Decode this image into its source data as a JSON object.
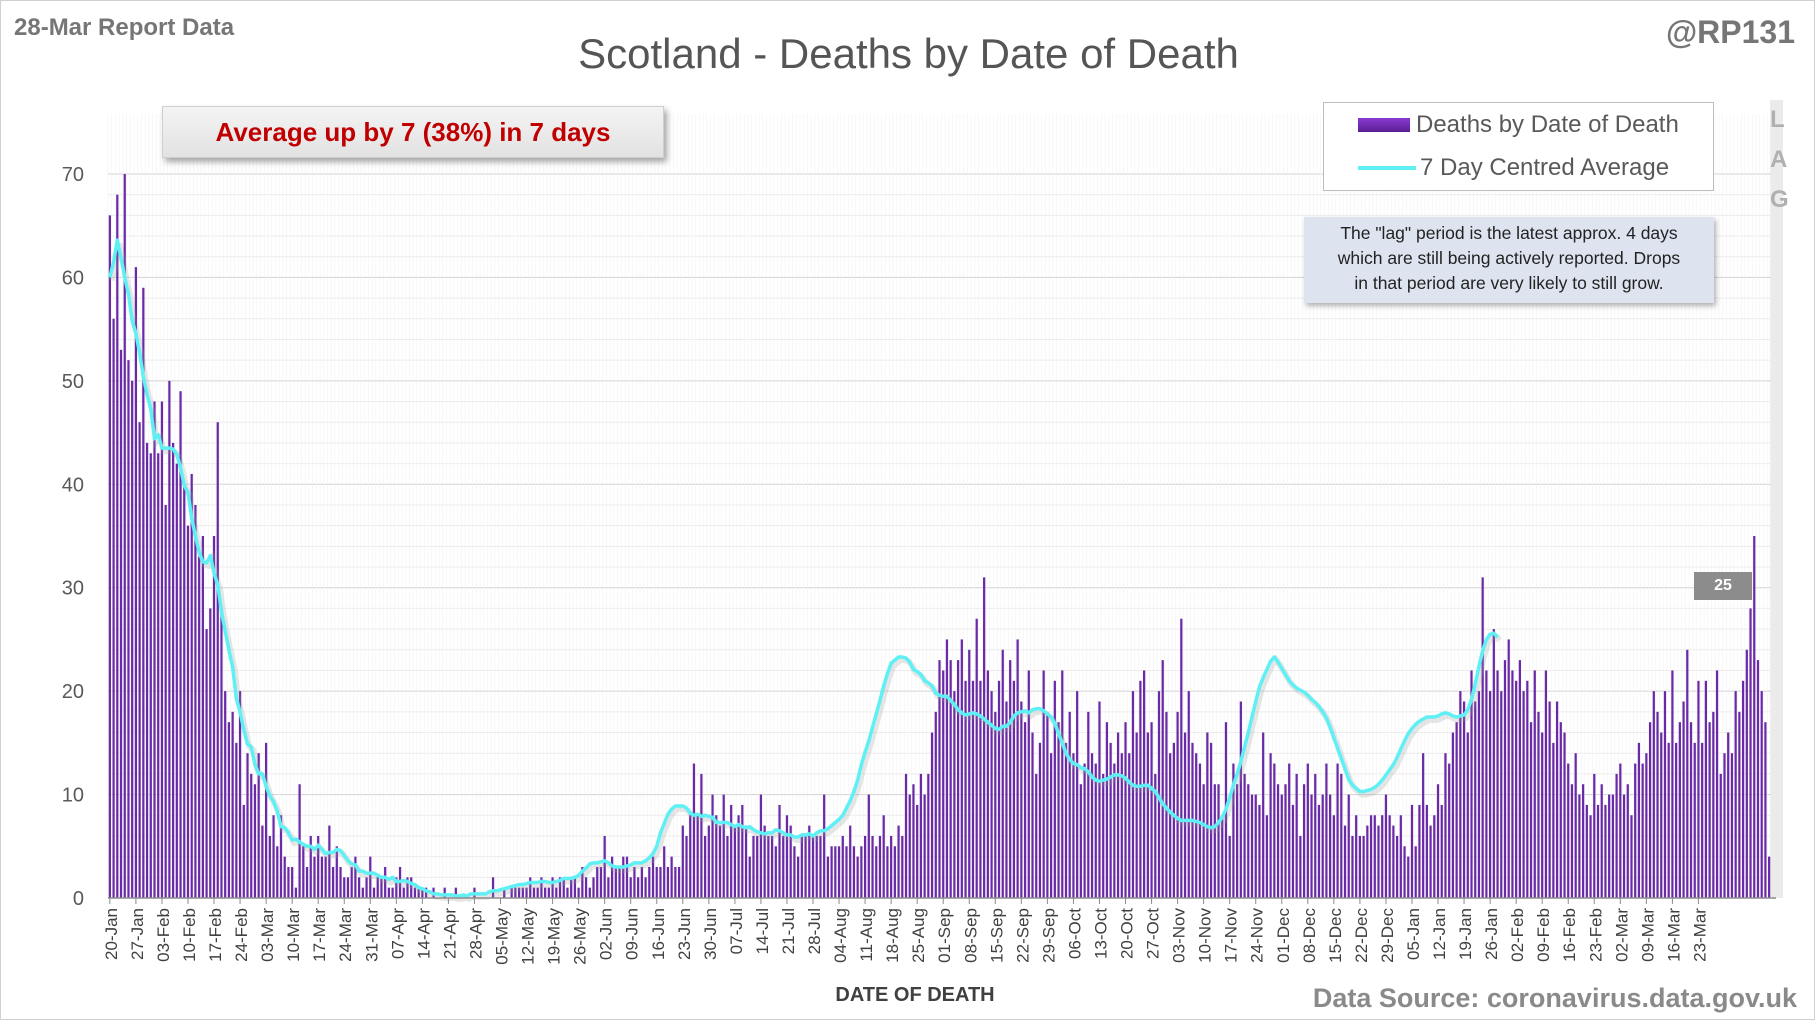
{
  "header": {
    "report_label": "28-Mar Report Data",
    "handle": "@RP131"
  },
  "banner": {
    "text": "Average up by 7 (38%) in 7 days"
  },
  "legend": {
    "bar_label": "Deaths by Date of Death",
    "line_label": "7 Day Centred Average"
  },
  "lag_letters": [
    "L",
    "A",
    "G"
  ],
  "note": {
    "lines": [
      "The \"lag\" period is the latest approx. 4 days",
      "which are still being actively reported. Drops",
      "in that period are very likely to still grow."
    ]
  },
  "callout": {
    "value": "25"
  },
  "footer": {
    "source": "Data Source: coronavirus.data.gov.uk"
  },
  "colors": {
    "bar": "#6a2aa8",
    "line": "#5ef0f5",
    "lag_band": "#ebebeb",
    "banner_text": "#c00000"
  },
  "chart_data": {
    "type": "bar",
    "title": "Scotland - Deaths by Date of Death",
    "xlabel": "DATE OF DEATH",
    "ylabel": "",
    "ylim": [
      0,
      70
    ],
    "yticks": [
      0,
      10,
      20,
      30,
      40,
      50,
      60,
      70
    ],
    "grid": true,
    "legend_position": "top-right",
    "x_tick_labels": [
      "20-Jan",
      "27-Jan",
      "03-Feb",
      "10-Feb",
      "17-Feb",
      "24-Feb",
      "03-Mar",
      "10-Mar",
      "17-Mar",
      "24-Mar",
      "31-Mar",
      "07-Apr",
      "14-Apr",
      "21-Apr",
      "28-Apr",
      "05-May",
      "12-May",
      "19-May",
      "26-May",
      "02-Jun",
      "09-Jun",
      "16-Jun",
      "23-Jun",
      "30-Jun",
      "07-Jul",
      "14-Jul",
      "21-Jul",
      "28-Jul",
      "04-Aug",
      "11-Aug",
      "18-Aug",
      "25-Aug",
      "01-Sep",
      "08-Sep",
      "15-Sep",
      "22-Sep",
      "29-Sep",
      "06-Oct",
      "13-Oct",
      "20-Oct",
      "27-Oct",
      "03-Nov",
      "10-Nov",
      "17-Nov",
      "24-Nov",
      "01-Dec",
      "08-Dec",
      "15-Dec",
      "22-Dec",
      "29-Dec",
      "05-Jan",
      "12-Jan",
      "19-Jan",
      "26-Jan",
      "02-Feb",
      "09-Feb",
      "16-Feb",
      "23-Feb",
      "02-Mar",
      "09-Mar",
      "16-Mar",
      "23-Mar"
    ],
    "series": [
      {
        "name": "Deaths by Date of Death",
        "type": "bar",
        "values": [
          66,
          56,
          68,
          53,
          70,
          52,
          50,
          61,
          46,
          59,
          44,
          43,
          48,
          43,
          48,
          38,
          50,
          44,
          42,
          49,
          40,
          36,
          41,
          38,
          33,
          35,
          26,
          28,
          35,
          46,
          28,
          20,
          17,
          18,
          15,
          20,
          9,
          14,
          12,
          11,
          14,
          7,
          15,
          6,
          8,
          5,
          8,
          4,
          3,
          3,
          1,
          11,
          5,
          3,
          6,
          4,
          6,
          4,
          4,
          7,
          3,
          5,
          3,
          2,
          2,
          3,
          4,
          2,
          1,
          2,
          4,
          1,
          2,
          2,
          3,
          1,
          1,
          2,
          3,
          1,
          2,
          2,
          1,
          1,
          1,
          1,
          0,
          1,
          0,
          0,
          1,
          0,
          0,
          1,
          0,
          0,
          0,
          0,
          1,
          0,
          0,
          0,
          0,
          2,
          0,
          0,
          1,
          0,
          1,
          1,
          1,
          1,
          1,
          2,
          1,
          1,
          2,
          1,
          1,
          2,
          1,
          2,
          2,
          1,
          2,
          2,
          1,
          3,
          2,
          1,
          2,
          3,
          3,
          6,
          2,
          4,
          3,
          3,
          4,
          4,
          2,
          3,
          2,
          3,
          2,
          3,
          4,
          3,
          3,
          5,
          3,
          4,
          3,
          3,
          7,
          6,
          8,
          13,
          8,
          12,
          6,
          7,
          10,
          8,
          7,
          10,
          6,
          9,
          7,
          8,
          9,
          7,
          4,
          6,
          6,
          10,
          7,
          6,
          6,
          5,
          9,
          6,
          8,
          7,
          5,
          4,
          6,
          6,
          7,
          6,
          6,
          6,
          10,
          4,
          5,
          5,
          5,
          6,
          5,
          7,
          5,
          4,
          5,
          6,
          10,
          6,
          5,
          6,
          8,
          5,
          6,
          5,
          7,
          6,
          12,
          10,
          11,
          9,
          12,
          10,
          12,
          16,
          18,
          23,
          22,
          25,
          23,
          20,
          23,
          25,
          21,
          24,
          21,
          27,
          21,
          31,
          22,
          20,
          18,
          21,
          24,
          19,
          23,
          21,
          25,
          19,
          17,
          22,
          16,
          12,
          15,
          22,
          18,
          14,
          21,
          17,
          22,
          15,
          18,
          14,
          20,
          11,
          13,
          18,
          14,
          13,
          19,
          12,
          17,
          15,
          13,
          16,
          14,
          17,
          14,
          20,
          16,
          21,
          22,
          16,
          17,
          12,
          20,
          23,
          18,
          14,
          15,
          18,
          27,
          16,
          20,
          15,
          14,
          13,
          11,
          16,
          15,
          11,
          11,
          8,
          17,
          6,
          13,
          11,
          19,
          12,
          11,
          10,
          10,
          9,
          16,
          8,
          14,
          13,
          11,
          10,
          11,
          13,
          9,
          12,
          6,
          11,
          13,
          10,
          12,
          9,
          10,
          13,
          10,
          8,
          13,
          12,
          7,
          10,
          6,
          8,
          6,
          6,
          7,
          8,
          8,
          7,
          8,
          10,
          8,
          7,
          6,
          8,
          5,
          4,
          9,
          5,
          9,
          14,
          9,
          7,
          8,
          11,
          9,
          14,
          13,
          16,
          17,
          20,
          19,
          16,
          22,
          19,
          20,
          31,
          22,
          20,
          26,
          22,
          20,
          23,
          25,
          22,
          21,
          23,
          20,
          21,
          17,
          22,
          18,
          16,
          22,
          19,
          15,
          19,
          17,
          16,
          13,
          11,
          14,
          10,
          11,
          9,
          8,
          12,
          9,
          11,
          9,
          10,
          10,
          12,
          13,
          10,
          11,
          8,
          13,
          15,
          13,
          14,
          17,
          20,
          18,
          16,
          20,
          15,
          22,
          15,
          17,
          19,
          24,
          17,
          15,
          21,
          15,
          21,
          17,
          18,
          22,
          12,
          14,
          16,
          14,
          20,
          18,
          21,
          24,
          28,
          35,
          23,
          20,
          17,
          4
        ],
        "color": "#6a2aa8"
      },
      {
        "name": "7 Day Centred Average",
        "type": "line",
        "values": [
          60.0,
          61.5,
          63.6,
          61.9,
          60.0,
          58.4,
          55.8,
          54.6,
          52.7,
          50.4,
          48.7,
          47.3,
          44.4,
          44.8,
          43.5,
          43.5,
          43.5,
          43.4,
          42.9,
          41.6,
          39.9,
          39.2,
          36.7,
          35.0,
          33.4,
          32.5,
          32.4,
          33.1,
          31.4,
          30.3,
          27.7,
          25.8,
          24.0,
          22.3,
          19.3,
          18.0,
          16.3,
          14.9,
          14.6,
          12.9,
          12.0,
          12.0,
          10.8,
          9.9,
          9.3,
          8.4,
          6.9,
          6.8,
          6.3,
          5.6,
          5.7,
          5.4,
          5.2,
          5.0,
          5.0,
          4.7,
          5.1,
          4.7,
          4.3,
          4.4,
          4.4,
          4.7,
          4.6,
          4.1,
          3.6,
          3.3,
          3.2,
          2.6,
          2.6,
          2.4,
          2.4,
          2.4,
          2.2,
          2.0,
          2.0,
          1.8,
          2.0,
          1.6,
          1.6,
          1.7,
          1.6,
          1.4,
          1.3,
          1.0,
          0.9,
          0.7,
          0.6,
          0.4,
          0.4,
          0.3,
          0.3,
          0.3,
          0.3,
          0.2,
          0.2,
          0.3,
          0.2,
          0.4,
          0.4,
          0.4,
          0.4,
          0.4,
          0.6,
          0.7,
          0.7,
          0.8,
          0.9,
          1.0,
          1.1,
          1.2,
          1.3,
          1.3,
          1.4,
          1.5,
          1.5,
          1.5,
          1.6,
          1.6,
          1.5,
          1.5,
          1.6,
          1.7,
          1.9,
          1.9,
          1.9,
          2.0,
          2.2,
          2.6,
          2.9,
          3.3,
          3.4,
          3.4,
          3.5,
          3.6,
          3.4,
          3.1,
          3.0,
          3.0,
          3.0,
          3.1,
          3.2,
          3.4,
          3.4,
          3.4,
          3.6,
          3.9,
          4.3,
          5.0,
          6.3,
          7.2,
          8.1,
          8.6,
          8.9,
          8.9,
          8.9,
          8.7,
          8.2,
          8.0,
          8.1,
          7.9,
          8.0,
          7.9,
          7.8,
          7.3,
          7.3,
          7.3,
          7.3,
          7.1,
          6.9,
          7.1,
          6.9,
          6.8,
          6.9,
          6.6,
          6.4,
          6.3,
          6.2,
          6.3,
          6.3,
          6.6,
          6.5,
          6.3,
          6.1,
          6.1,
          5.9,
          5.9,
          6.1,
          6.1,
          6.2,
          6.0,
          6.3,
          6.5,
          6.5,
          6.7,
          7.0,
          7.3,
          7.6,
          8.0,
          8.7,
          9.4,
          10.3,
          11.4,
          12.9,
          14.1,
          15.2,
          16.5,
          17.8,
          19.1,
          20.5,
          21.7,
          22.7,
          23.0,
          23.3,
          23.3,
          23.2,
          22.8,
          22.1,
          21.9,
          21.6,
          21.0,
          20.8,
          20.5,
          19.8,
          19.6,
          19.5,
          19.5,
          19.1,
          18.7,
          18.2,
          17.9,
          17.7,
          17.8,
          17.9,
          17.8,
          17.6,
          17.3,
          17.0,
          16.7,
          16.4,
          16.3,
          16.6,
          16.6,
          17.0,
          17.6,
          17.9,
          18.0,
          18.1,
          17.9,
          18.2,
          18.3,
          18.3,
          18.1,
          17.8,
          17.5,
          16.9,
          15.9,
          15.0,
          14.0,
          13.4,
          13.0,
          12.9,
          12.6,
          12.5,
          12.2,
          11.7,
          11.4,
          11.3,
          11.4,
          11.5,
          11.7,
          11.9,
          11.9,
          11.8,
          11.6,
          11.2,
          10.9,
          10.8,
          10.8,
          10.9,
          10.9,
          10.6,
          10.3,
          9.7,
          9.1,
          8.7,
          8.3,
          8.0,
          7.7,
          7.5,
          7.5,
          7.5,
          7.5,
          7.4,
          7.3,
          7.1,
          6.9,
          6.8,
          6.9,
          7.3,
          7.8,
          8.6,
          9.7,
          10.9,
          12.0,
          13.2,
          14.6,
          16.0,
          17.5,
          19.0,
          20.4,
          21.3,
          22.1,
          22.9,
          23.3,
          22.8,
          22.2,
          21.6,
          21.0,
          20.6,
          20.3,
          20.1,
          19.9,
          19.6,
          19.2,
          18.9,
          18.5,
          18.0,
          17.4,
          16.5,
          15.5,
          14.5,
          13.5,
          12.5,
          11.5,
          10.9,
          10.6,
          10.3,
          10.3,
          10.4,
          10.5,
          10.7,
          11.0,
          11.4,
          11.9,
          12.4,
          12.9,
          13.6,
          14.4,
          15.2,
          15.9,
          16.4,
          16.8,
          17.1,
          17.3,
          17.5,
          17.5,
          17.5,
          17.6,
          17.8,
          17.9,
          17.8,
          17.6,
          17.5,
          17.6,
          17.7,
          18.2,
          19.2,
          20.7,
          22.4,
          23.9,
          25.0,
          25.5,
          25.6,
          25.2
        ],
        "color": "#5ef0f5"
      }
    ],
    "lag_days": 4
  }
}
